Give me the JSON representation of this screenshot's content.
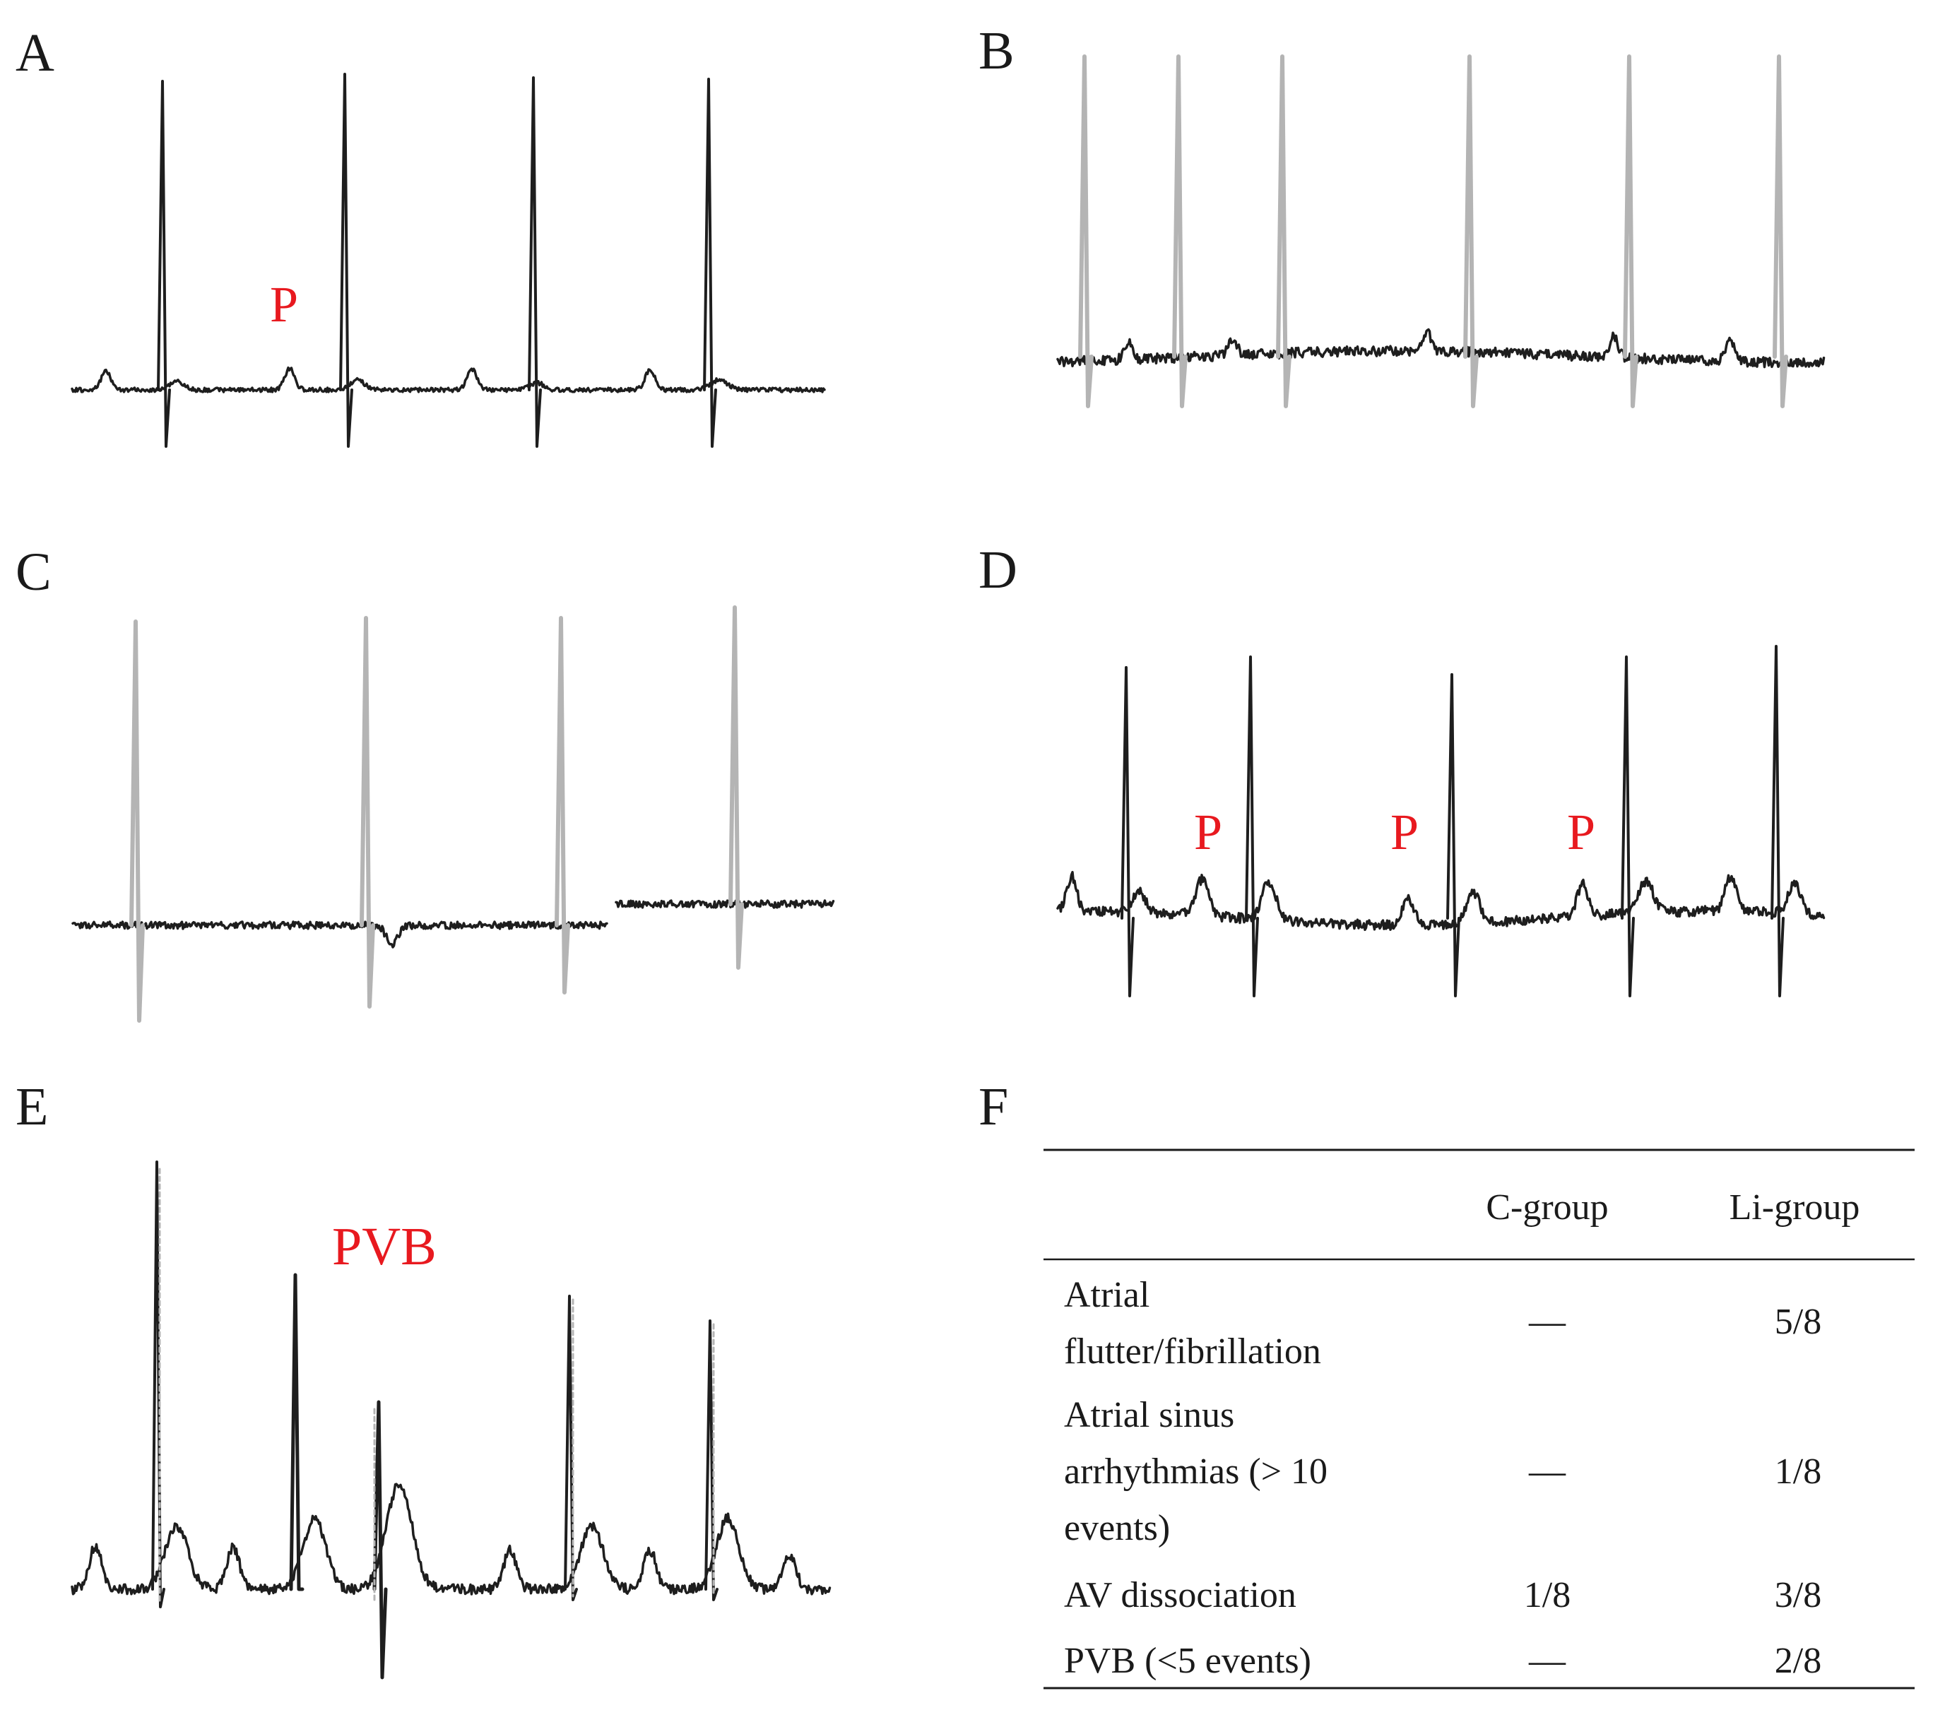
{
  "panels": [
    {
      "id": "A",
      "label": "A",
      "annotations": [
        "P"
      ]
    },
    {
      "id": "B",
      "label": "B",
      "annotations": []
    },
    {
      "id": "C",
      "label": "C",
      "annotations": []
    },
    {
      "id": "D",
      "label": "D",
      "annotations": [
        "P",
        "P",
        "P"
      ]
    },
    {
      "id": "E",
      "label": "E",
      "annotations": [
        "PVB"
      ]
    },
    {
      "id": "F",
      "label": "F",
      "annotations": []
    }
  ],
  "colors": {
    "trace_dark": "#1e1e1e",
    "trace_gray": "#b4b4b4",
    "annotation": "#e8191f",
    "text": "#1a1a1a"
  },
  "table": {
    "headers": [
      "",
      "C-group",
      "Li-group"
    ],
    "rows": [
      {
        "label_lines": [
          "Atrial",
          "flutter/fibrillation"
        ],
        "c_group": "—",
        "li_group": "5/8"
      },
      {
        "label_lines": [
          "Atrial  sinus",
          "arrhythmias  (> 10",
          "events)"
        ],
        "c_group": "—",
        "li_group": "1/8"
      },
      {
        "label_lines": [
          "AV dissociation"
        ],
        "c_group": "1/8",
        "li_group": "3/8"
      },
      {
        "label_lines": [
          "PVB (<5 events)"
        ],
        "c_group": "—",
        "li_group": "2/8"
      }
    ]
  }
}
